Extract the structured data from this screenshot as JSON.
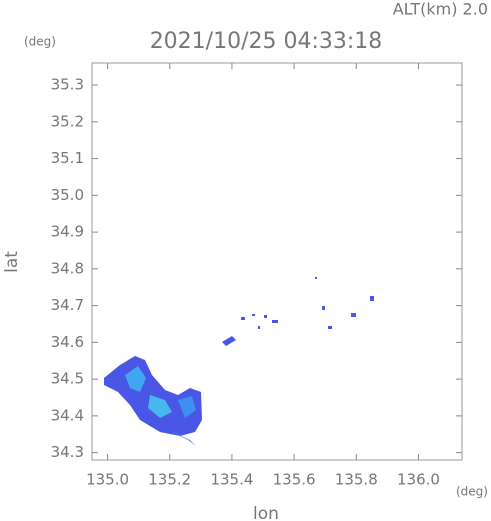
{
  "chart_data": {
    "type": "map",
    "title": "2021/10/25 04:33:18",
    "altitude_label": "ALT(km) 2.0",
    "x_label": "lon",
    "y_label": "lat",
    "x_unit": "(deg)",
    "y_unit": "(deg)",
    "xlim": [
      134.95,
      136.14
    ],
    "xticks": [
      {
        "value": 135.0,
        "label": "135.0"
      },
      135.2,
      135.4,
      135.6,
      135.8,
      {
        "value": 136.0,
        "label": "136.0"
      }
    ],
    "ylim": [
      34.28,
      35.36
    ],
    "yticks": [
      34.3,
      34.4,
      34.5,
      34.6,
      34.7,
      34.8,
      34.9,
      {
        "value": 35.0,
        "label": "35.0"
      },
      35.1,
      35.2,
      35.3
    ]
  }
}
